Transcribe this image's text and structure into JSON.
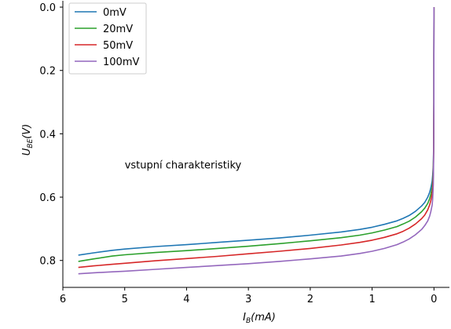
{
  "chart_data": {
    "type": "line",
    "title": "",
    "xlabel_main": "I",
    "xlabel_sub": "B",
    "xlabel_tail": "(mA)",
    "ylabel_main": "U",
    "ylabel_sub": "BE",
    "ylabel_tail": "(V)",
    "annotation": {
      "text": "vstupní charakteristiky",
      "x": 5.0,
      "y": 0.5
    },
    "xlim": [
      6.0,
      -0.25
    ],
    "ylim": [
      0.885,
      -0.02
    ],
    "x_inverted": true,
    "y_inverted": true,
    "grid": false,
    "legend_position": "top-left",
    "xticks": [
      6,
      5,
      4,
      3,
      2,
      1,
      0
    ],
    "xtick_labels": [
      "6",
      "5",
      "4",
      "3",
      "2",
      "1",
      "0"
    ],
    "yticks": [
      0.0,
      0.2,
      0.4,
      0.6,
      0.8
    ],
    "ytick_labels": [
      "0.0",
      "0.2",
      "0.4",
      "0.6",
      "0.8"
    ],
    "series": [
      {
        "name": "0mV",
        "color": "#1f77b4",
        "x": [
          5.75,
          5.5,
          5.2,
          5.0,
          4.5,
          4.0,
          3.5,
          3.0,
          2.5,
          2.0,
          1.5,
          1.2,
          1.0,
          0.8,
          0.6,
          0.5,
          0.4,
          0.3,
          0.2,
          0.15,
          0.1,
          0.07,
          0.05,
          0.03,
          0.02,
          0.01,
          0.005,
          0.002,
          0.001,
          0.0,
          0.0
        ],
        "y": [
          0.783,
          0.776,
          0.768,
          0.764,
          0.756,
          0.75,
          0.743,
          0.736,
          0.729,
          0.72,
          0.71,
          0.702,
          0.695,
          0.686,
          0.675,
          0.667,
          0.658,
          0.645,
          0.628,
          0.617,
          0.6,
          0.585,
          0.57,
          0.55,
          0.53,
          0.5,
          0.44,
          0.3,
          0.15,
          0.03,
          0.0
        ]
      },
      {
        "name": "20mV",
        "color": "#2ca02c",
        "x": [
          5.75,
          5.5,
          5.2,
          5.0,
          4.5,
          4.0,
          3.5,
          3.0,
          2.5,
          2.0,
          1.5,
          1.2,
          1.0,
          0.8,
          0.6,
          0.5,
          0.4,
          0.3,
          0.2,
          0.15,
          0.1,
          0.07,
          0.05,
          0.03,
          0.02,
          0.01,
          0.005,
          0.002,
          0.001,
          0.0,
          0.0
        ],
        "y": [
          0.803,
          0.795,
          0.786,
          0.782,
          0.775,
          0.769,
          0.762,
          0.755,
          0.747,
          0.738,
          0.728,
          0.72,
          0.713,
          0.704,
          0.693,
          0.685,
          0.676,
          0.663,
          0.646,
          0.635,
          0.62,
          0.605,
          0.59,
          0.57,
          0.55,
          0.515,
          0.45,
          0.3,
          0.15,
          0.03,
          0.0
        ]
      },
      {
        "name": "50mV",
        "color": "#d62728",
        "x": [
          5.75,
          5.5,
          5.2,
          5.0,
          4.5,
          4.0,
          3.5,
          3.0,
          2.5,
          2.0,
          1.5,
          1.2,
          1.0,
          0.8,
          0.6,
          0.5,
          0.4,
          0.3,
          0.2,
          0.15,
          0.1,
          0.07,
          0.05,
          0.03,
          0.02,
          0.01,
          0.005,
          0.002,
          0.001,
          0.0,
          0.0
        ],
        "y": [
          0.822,
          0.817,
          0.812,
          0.809,
          0.801,
          0.794,
          0.787,
          0.779,
          0.771,
          0.762,
          0.751,
          0.743,
          0.736,
          0.727,
          0.716,
          0.708,
          0.698,
          0.685,
          0.668,
          0.657,
          0.64,
          0.625,
          0.61,
          0.59,
          0.57,
          0.53,
          0.46,
          0.3,
          0.15,
          0.03,
          0.0
        ]
      },
      {
        "name": "100mV",
        "color": "#9467bd",
        "x": [
          5.75,
          5.5,
          5.2,
          5.0,
          4.5,
          4.0,
          3.5,
          3.0,
          2.5,
          2.0,
          1.5,
          1.2,
          1.0,
          0.8,
          0.6,
          0.5,
          0.4,
          0.3,
          0.2,
          0.15,
          0.1,
          0.07,
          0.05,
          0.03,
          0.02,
          0.01,
          0.005,
          0.002,
          0.001,
          0.0,
          0.0
        ],
        "y": [
          0.842,
          0.839,
          0.836,
          0.834,
          0.828,
          0.822,
          0.816,
          0.81,
          0.803,
          0.795,
          0.786,
          0.778,
          0.771,
          0.762,
          0.75,
          0.742,
          0.732,
          0.719,
          0.702,
          0.69,
          0.675,
          0.66,
          0.645,
          0.625,
          0.605,
          0.56,
          0.48,
          0.31,
          0.15,
          0.03,
          0.0
        ]
      }
    ]
  }
}
